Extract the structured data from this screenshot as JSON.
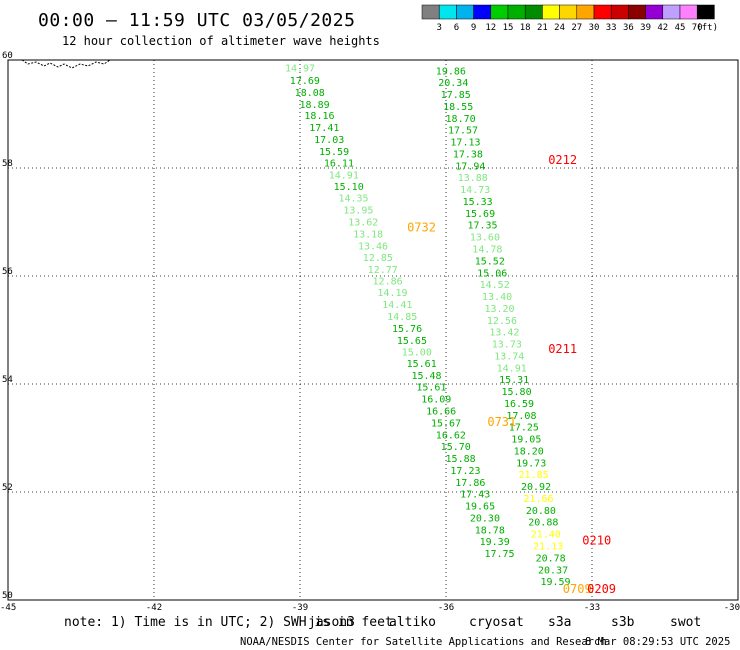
{
  "header": {
    "title": "00:00 – 11:59 UTC 03/05/2025",
    "subtitle": "12 hour collection of altimeter wave heights"
  },
  "colorbar": {
    "labels": [
      "3",
      "6",
      "9",
      "12",
      "15",
      "18",
      "21",
      "24",
      "27",
      "30",
      "33",
      "36",
      "39",
      "42",
      "45",
      "70",
      "(ft)"
    ],
    "colors": [
      "#808080",
      "#00e5ee",
      "#00b2ee",
      "#0000ff",
      "#00cd00",
      "#00b000",
      "#008b00",
      "#ffff00",
      "#ffd700",
      "#ffa500",
      "#ff0000",
      "#cd0000",
      "#8b0000",
      "#9400d3",
      "#c0a0ff",
      "#ff80ff",
      "#000000"
    ]
  },
  "note": {
    "text": "note: 1) Time is in UTC; 2) SWH is in feet",
    "missions": [
      {
        "label": "jason3",
        "color": "#008b00"
      },
      {
        "label": "altiko",
        "color": "#ffa500"
      },
      {
        "label": "cryosat",
        "color": "#ff0000"
      },
      {
        "label": "s3a",
        "color": "#cd0000"
      },
      {
        "label": "s3b",
        "color": "#c0a0ff"
      },
      {
        "label": "swot",
        "color": "#ff80ff"
      }
    ]
  },
  "footer": {
    "credit": "NOAA/NESDIS Center for Satellite Applications and Research",
    "stamp": "8 Mar 08:29:53 UTC 2025"
  },
  "chart_data": {
    "type": "scatter",
    "xlim": [
      -45,
      -30
    ],
    "ylim": [
      50,
      60
    ],
    "xticks": [
      -45,
      -42,
      -39,
      -36,
      -33,
      -30
    ],
    "yticks": [
      50,
      52,
      54,
      56,
      58,
      60
    ],
    "grid": true,
    "tracks": [
      {
        "name": "track-a",
        "points": [
          {
            "x": -39.0,
            "y": 59.85,
            "v": "14.97",
            "color": "#7ee87e"
          },
          {
            "x": -38.9,
            "y": 59.62,
            "v": "17.69",
            "color": "#00b000"
          },
          {
            "x": -38.8,
            "y": 59.4,
            "v": "18.08",
            "color": "#00b000"
          },
          {
            "x": -38.7,
            "y": 59.18,
            "v": "18.89",
            "color": "#00b000"
          },
          {
            "x": -38.6,
            "y": 58.97,
            "v": "18.16",
            "color": "#00b000"
          },
          {
            "x": -38.5,
            "y": 58.75,
            "v": "17.41",
            "color": "#00b000"
          },
          {
            "x": -38.4,
            "y": 58.53,
            "v": "17.03",
            "color": "#00b000"
          },
          {
            "x": -38.3,
            "y": 58.31,
            "v": "15.59",
            "color": "#00b000"
          },
          {
            "x": -38.2,
            "y": 58.09,
            "v": "16.11",
            "color": "#00b000"
          },
          {
            "x": -38.1,
            "y": 57.87,
            "v": "14.91",
            "color": "#7ee87e"
          },
          {
            "x": -38.0,
            "y": 57.66,
            "v": "15.10",
            "color": "#00b000"
          },
          {
            "x": -37.9,
            "y": 57.44,
            "v": "14.35",
            "color": "#7ee87e"
          },
          {
            "x": -37.8,
            "y": 57.22,
            "v": "13.95",
            "color": "#7ee87e"
          },
          {
            "x": -37.7,
            "y": 57.0,
            "v": "13.62",
            "color": "#7ee87e"
          },
          {
            "x": -37.6,
            "y": 56.78,
            "v": "13.18",
            "color": "#7ee87e"
          },
          {
            "x": -37.5,
            "y": 56.56,
            "v": "13.46",
            "color": "#7ee87e"
          },
          {
            "x": -37.4,
            "y": 56.34,
            "v": "12.85",
            "color": "#7ee87e"
          },
          {
            "x": -37.3,
            "y": 56.12,
            "v": "12.77",
            "color": "#7ee87e"
          },
          {
            "x": -37.2,
            "y": 55.91,
            "v": "12.86",
            "color": "#7ee87e"
          },
          {
            "x": -37.1,
            "y": 55.69,
            "v": "14.19",
            "color": "#7ee87e"
          },
          {
            "x": -37.0,
            "y": 55.47,
            "v": "14.41",
            "color": "#7ee87e"
          },
          {
            "x": -36.9,
            "y": 55.25,
            "v": "14.85",
            "color": "#7ee87e"
          },
          {
            "x": -36.8,
            "y": 55.03,
            "v": "15.76",
            "color": "#00b000"
          },
          {
            "x": -36.7,
            "y": 54.81,
            "v": "15.65",
            "color": "#00b000"
          },
          {
            "x": -36.6,
            "y": 54.59,
            "v": "15.00",
            "color": "#7ee87e"
          },
          {
            "x": -36.5,
            "y": 54.38,
            "v": "15.61",
            "color": "#00b000"
          },
          {
            "x": -36.4,
            "y": 54.16,
            "v": "15.48",
            "color": "#00b000"
          },
          {
            "x": -36.3,
            "y": 53.94,
            "v": "15.61",
            "color": "#00b000"
          },
          {
            "x": -36.2,
            "y": 53.72,
            "v": "16.09",
            "color": "#00b000"
          },
          {
            "x": -36.1,
            "y": 53.5,
            "v": "16.66",
            "color": "#00b000"
          },
          {
            "x": -36.0,
            "y": 53.28,
            "v": "15.67",
            "color": "#00b000"
          },
          {
            "x": -35.9,
            "y": 53.06,
            "v": "16.62",
            "color": "#00b000"
          },
          {
            "x": -35.8,
            "y": 52.84,
            "v": "15.70",
            "color": "#00b000"
          },
          {
            "x": -35.7,
            "y": 52.62,
            "v": "15.88",
            "color": "#00b000"
          },
          {
            "x": -35.6,
            "y": 52.4,
            "v": "17.23",
            "color": "#00b000"
          },
          {
            "x": -35.5,
            "y": 52.18,
            "v": "17.86",
            "color": "#00b000"
          },
          {
            "x": -35.4,
            "y": 51.96,
            "v": "17.43",
            "color": "#00b000"
          },
          {
            "x": -35.3,
            "y": 51.74,
            "v": "19.65",
            "color": "#00b000"
          },
          {
            "x": -35.2,
            "y": 51.52,
            "v": "20.30",
            "color": "#00b000"
          },
          {
            "x": -35.1,
            "y": 51.3,
            "v": "18.78",
            "color": "#00b000"
          },
          {
            "x": -35.0,
            "y": 51.08,
            "v": "19.39",
            "color": "#00b000"
          },
          {
            "x": -34.9,
            "y": 50.86,
            "v": "17.75",
            "color": "#00b000"
          }
        ]
      },
      {
        "name": "track-b",
        "points": [
          {
            "x": -35.9,
            "y": 59.8,
            "v": "19.86",
            "color": "#00b000"
          },
          {
            "x": -35.85,
            "y": 59.58,
            "v": "20.34",
            "color": "#00b000"
          },
          {
            "x": -35.8,
            "y": 59.36,
            "v": "17.85",
            "color": "#00b000"
          },
          {
            "x": -35.75,
            "y": 59.14,
            "v": "18.55",
            "color": "#00b000"
          },
          {
            "x": -35.7,
            "y": 58.92,
            "v": "18.70",
            "color": "#00b000"
          },
          {
            "x": -35.65,
            "y": 58.7,
            "v": "17.57",
            "color": "#00b000"
          },
          {
            "x": -35.6,
            "y": 58.48,
            "v": "17.13",
            "color": "#00b000"
          },
          {
            "x": -35.55,
            "y": 58.26,
            "v": "17.38",
            "color": "#00b000"
          },
          {
            "x": -35.5,
            "y": 58.04,
            "v": "17.94",
            "color": "#00b000"
          },
          {
            "x": -35.45,
            "y": 57.82,
            "v": "13.88",
            "color": "#7ee87e"
          },
          {
            "x": -35.4,
            "y": 57.6,
            "v": "14.73",
            "color": "#7ee87e"
          },
          {
            "x": -35.35,
            "y": 57.38,
            "v": "15.33",
            "color": "#00b000"
          },
          {
            "x": -35.3,
            "y": 57.16,
            "v": "15.69",
            "color": "#00b000"
          },
          {
            "x": -35.25,
            "y": 56.94,
            "v": "17.35",
            "color": "#00b000"
          },
          {
            "x": -35.2,
            "y": 56.72,
            "v": "13.60",
            "color": "#7ee87e"
          },
          {
            "x": -35.15,
            "y": 56.5,
            "v": "14.78",
            "color": "#7ee87e"
          },
          {
            "x": -35.1,
            "y": 56.28,
            "v": "15.52",
            "color": "#00b000"
          },
          {
            "x": -35.05,
            "y": 56.06,
            "v": "15.06",
            "color": "#00b000"
          },
          {
            "x": -35.0,
            "y": 55.84,
            "v": "14.52",
            "color": "#7ee87e"
          },
          {
            "x": -34.95,
            "y": 55.62,
            "v": "13.40",
            "color": "#7ee87e"
          },
          {
            "x": -34.9,
            "y": 55.4,
            "v": "13.20",
            "color": "#7ee87e"
          },
          {
            "x": -34.85,
            "y": 55.18,
            "v": "12.56",
            "color": "#7ee87e"
          },
          {
            "x": -34.8,
            "y": 54.96,
            "v": "13.42",
            "color": "#7ee87e"
          },
          {
            "x": -34.75,
            "y": 54.74,
            "v": "13.73",
            "color": "#7ee87e"
          },
          {
            "x": -34.7,
            "y": 54.52,
            "v": "13.74",
            "color": "#7ee87e"
          },
          {
            "x": -34.65,
            "y": 54.3,
            "v": "14.91",
            "color": "#7ee87e"
          },
          {
            "x": -34.6,
            "y": 54.08,
            "v": "15.31",
            "color": "#00b000"
          },
          {
            "x": -34.55,
            "y": 53.86,
            "v": "15.80",
            "color": "#00b000"
          },
          {
            "x": -34.5,
            "y": 53.64,
            "v": "16.59",
            "color": "#00b000"
          },
          {
            "x": -34.45,
            "y": 53.42,
            "v": "17.08",
            "color": "#00b000"
          },
          {
            "x": -34.4,
            "y": 53.2,
            "v": "17.25",
            "color": "#00b000"
          },
          {
            "x": -34.35,
            "y": 52.98,
            "v": "19.05",
            "color": "#00b000"
          },
          {
            "x": -34.3,
            "y": 52.76,
            "v": "18.20",
            "color": "#00b000"
          },
          {
            "x": -34.25,
            "y": 52.54,
            "v": "19.73",
            "color": "#00b000"
          },
          {
            "x": -34.2,
            "y": 52.32,
            "v": "21.85",
            "color": "#ffff00"
          },
          {
            "x": -34.15,
            "y": 52.1,
            "v": "20.92",
            "color": "#00b000"
          },
          {
            "x": -34.1,
            "y": 51.88,
            "v": "21.66",
            "color": "#ffff00"
          },
          {
            "x": -34.05,
            "y": 51.66,
            "v": "20.80",
            "color": "#00b000"
          },
          {
            "x": -34.0,
            "y": 51.44,
            "v": "20.88",
            "color": "#00b000"
          },
          {
            "x": -33.95,
            "y": 51.22,
            "v": "21.40",
            "color": "#ffff00"
          },
          {
            "x": -33.9,
            "y": 51.0,
            "v": "21.13",
            "color": "#ffff00"
          },
          {
            "x": -33.85,
            "y": 50.78,
            "v": "20.78",
            "color": "#00b000"
          },
          {
            "x": -33.8,
            "y": 50.56,
            "v": "20.37",
            "color": "#00b000"
          },
          {
            "x": -33.75,
            "y": 50.34,
            "v": "19.59",
            "color": "#00b000"
          }
        ]
      }
    ],
    "annotations": [
      {
        "text": "0212",
        "x": -33.9,
        "y": 58.15,
        "color": "#ff0000"
      },
      {
        "text": "0732",
        "x": -36.8,
        "y": 56.9,
        "color": "#ffa500"
      },
      {
        "text": "0211",
        "x": -33.9,
        "y": 54.65,
        "color": "#ff0000"
      },
      {
        "text": "0731",
        "x": -35.15,
        "y": 53.3,
        "color": "#ffa500"
      },
      {
        "text": "0210",
        "x": -33.2,
        "y": 51.1,
        "color": "#ff0000"
      },
      {
        "text": "0709",
        "x": -33.6,
        "y": 50.2,
        "color": "#ffa500"
      },
      {
        "text": "0209",
        "x": -33.1,
        "y": 50.2,
        "color": "#ff0000"
      }
    ]
  }
}
